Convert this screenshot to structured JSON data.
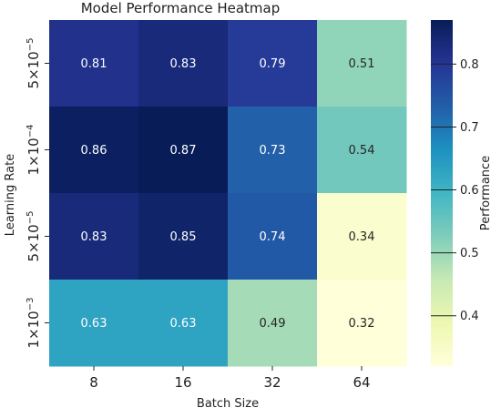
{
  "chart_data": {
    "type": "heatmap",
    "title": "Model Performance Heatmap",
    "xlabel": "Batch Size",
    "ylabel": "Learning Rate",
    "x_categories": [
      "8",
      "16",
      "32",
      "64"
    ],
    "y_categories": [
      {
        "mantissa": "5",
        "base": "10",
        "exponent": "−5"
      },
      {
        "mantissa": "1",
        "base": "10",
        "exponent": "−4"
      },
      {
        "mantissa": "5",
        "base": "10",
        "exponent": "−5"
      },
      {
        "mantissa": "1",
        "base": "10",
        "exponent": "−3"
      }
    ],
    "values": [
      [
        0.81,
        0.83,
        0.79,
        0.51
      ],
      [
        0.86,
        0.87,
        0.73,
        0.54
      ],
      [
        0.83,
        0.85,
        0.74,
        0.34
      ],
      [
        0.63,
        0.63,
        0.49,
        0.32
      ]
    ],
    "colormap": "YlGnBu",
    "colorbar": {
      "label": "Performance",
      "range": [
        0.32,
        0.87
      ],
      "ticks": [
        "0.4",
        "0.5",
        "0.6",
        "0.7",
        "0.8"
      ]
    }
  }
}
